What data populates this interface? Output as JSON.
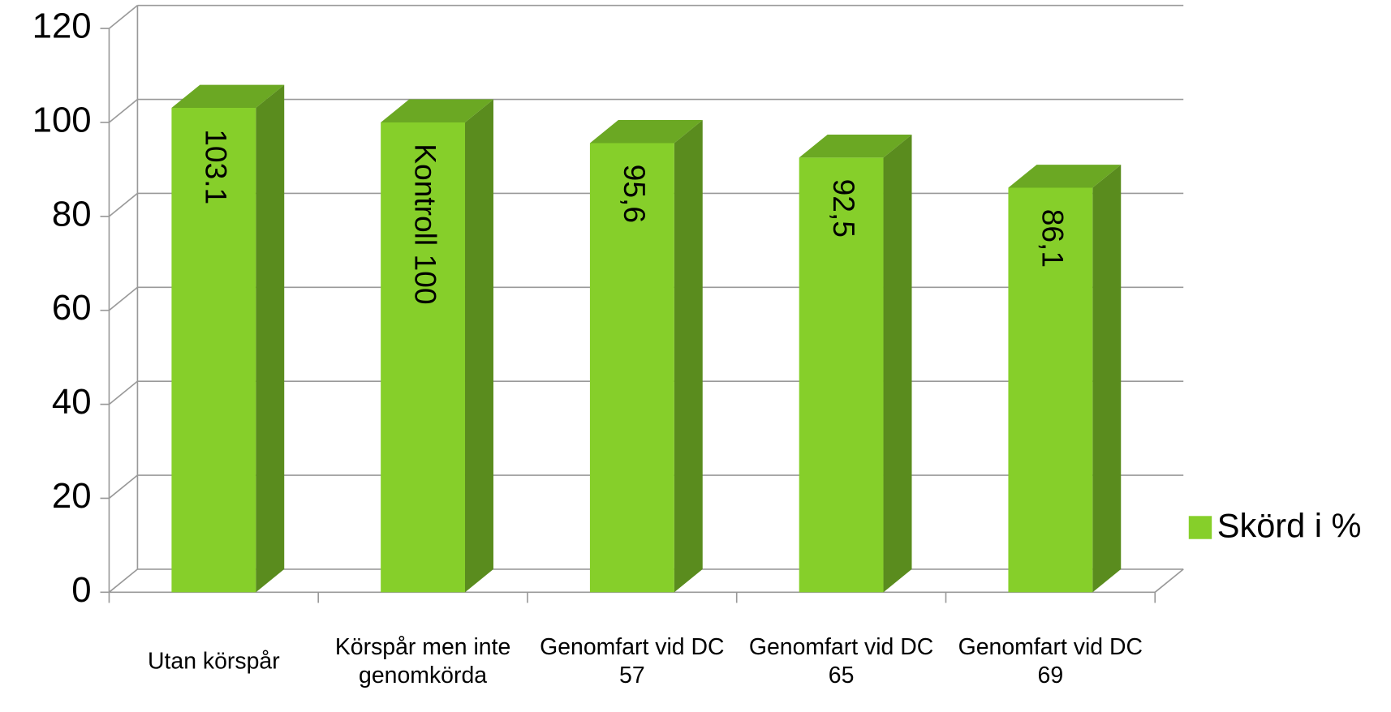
{
  "chart_data": {
    "type": "bar3d",
    "categories": [
      "Utan körspår",
      "Körspår men inte genomkörda",
      "Genomfart vid DC 57",
      "Genomfart vid DC 65",
      "Genomfart vid DC 69"
    ],
    "series": [
      {
        "name": "Skörd i %",
        "color": "#86cf2a",
        "values": [
          103.1,
          100,
          95.6,
          92.5,
          86.1
        ],
        "value_labels": [
          "103.1",
          "Kontroll 100",
          "95,6",
          "92,5",
          "86,1"
        ]
      }
    ],
    "ylim": [
      0,
      120
    ],
    "yticks": [
      0,
      20,
      40,
      60,
      80,
      100,
      120
    ],
    "grid": true,
    "legend": "right"
  }
}
